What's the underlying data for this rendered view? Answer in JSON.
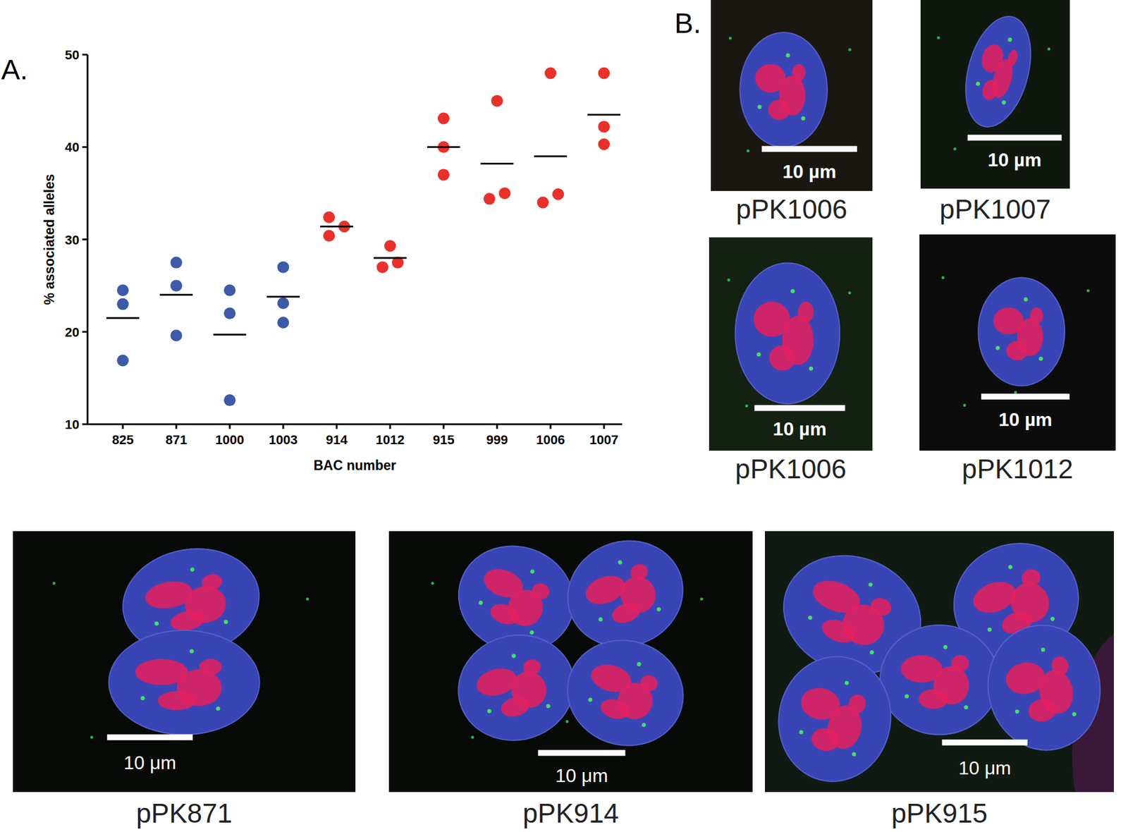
{
  "chart_data": {
    "type": "scatter",
    "panel_label": "A.",
    "x_label": "BAC number",
    "y_label": "% associated alleles",
    "categories": [
      "825",
      "871",
      "1000",
      "1003",
      "914",
      "1012",
      "915",
      "999",
      "1006",
      "1007"
    ],
    "values": [
      [
        24.5,
        23.0,
        16.9
      ],
      [
        27.5,
        25.0,
        19.6
      ],
      [
        24.5,
        22.0,
        12.6
      ],
      [
        27.0,
        23.1,
        21.0
      ],
      [
        32.4,
        30.4,
        31.4
      ],
      [
        29.3,
        27.0,
        27.5
      ],
      [
        43.1,
        40.0,
        37.0
      ],
      [
        45.0,
        34.4,
        35.0
      ],
      [
        48.0,
        34.0,
        34.9
      ],
      [
        48.0,
        42.2,
        40.3
      ]
    ],
    "means": [
      21.5,
      24.0,
      19.7,
      23.8,
      31.4,
      28.0,
      40.0,
      38.2,
      39.0,
      43.5
    ],
    "colors": [
      "#3d5aa8",
      "#3d5aa8",
      "#3d5aa8",
      "#3d5aa8",
      "#e8312b",
      "#e8312b",
      "#e8312b",
      "#e8312b",
      "#e8312b",
      "#e8312b"
    ],
    "ylim": [
      10,
      50
    ],
    "yticks": [
      10,
      20,
      30,
      40,
      50
    ]
  },
  "figure": {
    "panel_label": "B.",
    "images": [
      {
        "caption": "pPK1006",
        "scale_bar": "10 µm"
      },
      {
        "caption": "pPK1007",
        "scale_bar": "10 µm"
      },
      {
        "caption": "pPK1006",
        "scale_bar": "10 µm"
      },
      {
        "caption": "pPK1012",
        "scale_bar": "10 µm"
      },
      {
        "caption": "pPK871",
        "scale_bar": "10 μm"
      },
      {
        "caption": "pPK914",
        "scale_bar": "10 μm"
      },
      {
        "caption": "pPK915",
        "scale_bar": "10 μm"
      }
    ]
  }
}
